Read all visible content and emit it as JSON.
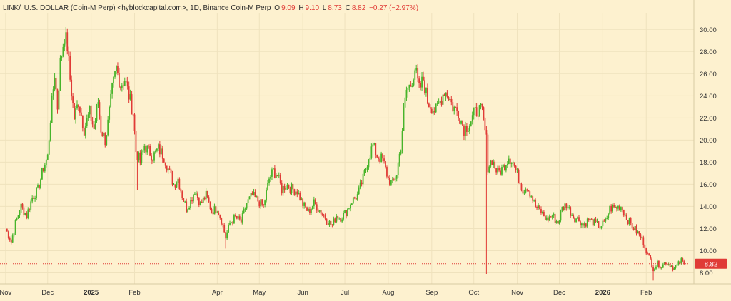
{
  "header": {
    "symbol": "LINK/",
    "name": "U.S. DOLLAR (Coin-M Perp) <hyblockcapital.com>, 1D, Binance Coin-M Perp",
    "o_label": "O",
    "o_value": "9.09",
    "h_label": "H",
    "h_value": "9.10",
    "l_label": "L",
    "l_value": "8.73",
    "c_label": "C",
    "c_value": "8.82",
    "change": "−0.27 (−2.97%)"
  },
  "colors": {
    "background": "#fdf1cf",
    "up": "#47b42a",
    "down": "#e03b36",
    "grid": "#efe2bd",
    "axis_text": "#333333",
    "last_price_badge": "#e03b36"
  },
  "chart_data": {
    "type": "candlestick",
    "title": "",
    "xlabel": "",
    "ylabel": "",
    "ylim": [
      7.0,
      31.5
    ],
    "grid": true,
    "y_ticks": [
      "8.00",
      "10.00",
      "12.00",
      "14.00",
      "16.00",
      "18.00",
      "20.00",
      "22.00",
      "24.00",
      "26.00",
      "28.00",
      "30.00"
    ],
    "x_ticks": [
      {
        "label": "Nov",
        "date": "2024-11-01"
      },
      {
        "label": "Dec",
        "date": "2024-12-01"
      },
      {
        "label": "2025",
        "date": "2025-01-01"
      },
      {
        "label": "Feb",
        "date": "2025-02-01"
      },
      {
        "label": "Apr",
        "date": "2025-04-01"
      },
      {
        "label": "May",
        "date": "2025-05-01"
      },
      {
        "label": "Jun",
        "date": "2025-06-01"
      },
      {
        "label": "Jul",
        "date": "2025-07-01"
      },
      {
        "label": "Aug",
        "date": "2025-08-01"
      },
      {
        "label": "Sep",
        "date": "2025-09-01"
      },
      {
        "label": "Oct",
        "date": "2025-10-01"
      },
      {
        "label": "Nov",
        "date": "2025-11-01"
      },
      {
        "label": "Dec",
        "date": "2025-12-01"
      },
      {
        "label": "2026",
        "date": "2026-01-01"
      },
      {
        "label": "Feb",
        "date": "2026-02-01"
      }
    ],
    "last_price": {
      "value": 8.82,
      "label": "8.82"
    },
    "close_path": [
      [
        "2024-11-01",
        12.0
      ],
      [
        "2024-11-05",
        10.8
      ],
      [
        "2024-11-08",
        12.5
      ],
      [
        "2024-11-12",
        14.0
      ],
      [
        "2024-11-16",
        13.2
      ],
      [
        "2024-11-20",
        14.8
      ],
      [
        "2024-11-24",
        15.5
      ],
      [
        "2024-11-28",
        17.5
      ],
      [
        "2024-12-01",
        18.5
      ],
      [
        "2024-12-03",
        22.0
      ],
      [
        "2024-12-06",
        26.0
      ],
      [
        "2024-12-08",
        23.0
      ],
      [
        "2024-12-10",
        27.0
      ],
      [
        "2024-12-13",
        29.5
      ],
      [
        "2024-12-15",
        28.5
      ],
      [
        "2024-12-17",
        25.5
      ],
      [
        "2024-12-20",
        22.0
      ],
      [
        "2024-12-23",
        23.5
      ],
      [
        "2024-12-27",
        21.0
      ],
      [
        "2024-12-31",
        22.5
      ],
      [
        "2025-01-03",
        21.0
      ],
      [
        "2025-01-06",
        23.5
      ],
      [
        "2025-01-08",
        21.0
      ],
      [
        "2025-01-11",
        20.0
      ],
      [
        "2025-01-13",
        21.5
      ],
      [
        "2025-01-16",
        24.5
      ],
      [
        "2025-01-19",
        26.5
      ],
      [
        "2025-01-22",
        25.0
      ],
      [
        "2025-01-25",
        25.5
      ],
      [
        "2025-01-28",
        24.0
      ],
      [
        "2025-01-31",
        22.5
      ],
      [
        "2025-02-02",
        19.0
      ],
      [
        "2025-02-05",
        18.0
      ],
      [
        "2025-02-08",
        19.5
      ],
      [
        "2025-02-11",
        19.0
      ],
      [
        "2025-02-14",
        18.5
      ],
      [
        "2025-02-18",
        19.2
      ],
      [
        "2025-02-22",
        18.5
      ],
      [
        "2025-02-26",
        17.0
      ],
      [
        "2025-03-01",
        16.0
      ],
      [
        "2025-03-04",
        16.5
      ],
      [
        "2025-03-07",
        15.0
      ],
      [
        "2025-03-10",
        13.8
      ],
      [
        "2025-03-13",
        14.5
      ],
      [
        "2025-03-16",
        15.5
      ],
      [
        "2025-03-20",
        14.2
      ],
      [
        "2025-03-24",
        15.0
      ],
      [
        "2025-03-28",
        13.6
      ],
      [
        "2025-04-01",
        13.8
      ],
      [
        "2025-04-04",
        12.8
      ],
      [
        "2025-04-07",
        11.2
      ],
      [
        "2025-04-10",
        12.5
      ],
      [
        "2025-04-14",
        13.0
      ],
      [
        "2025-04-18",
        12.6
      ],
      [
        "2025-04-22",
        14.3
      ],
      [
        "2025-04-26",
        15.0
      ],
      [
        "2025-04-30",
        14.5
      ],
      [
        "2025-05-04",
        14.0
      ],
      [
        "2025-05-08",
        16.5
      ],
      [
        "2025-05-11",
        17.2
      ],
      [
        "2025-05-14",
        16.8
      ],
      [
        "2025-05-17",
        15.5
      ],
      [
        "2025-05-20",
        16.0
      ],
      [
        "2025-05-24",
        15.6
      ],
      [
        "2025-05-28",
        15.4
      ],
      [
        "2025-06-01",
        14.2
      ],
      [
        "2025-06-05",
        13.5
      ],
      [
        "2025-06-09",
        14.3
      ],
      [
        "2025-06-12",
        13.8
      ],
      [
        "2025-06-16",
        13.2
      ],
      [
        "2025-06-20",
        12.5
      ],
      [
        "2025-06-22",
        12.3
      ],
      [
        "2025-06-25",
        13.2
      ],
      [
        "2025-06-28",
        13.0
      ],
      [
        "2025-07-02",
        13.5
      ],
      [
        "2025-07-06",
        14.5
      ],
      [
        "2025-07-10",
        15.0
      ],
      [
        "2025-07-14",
        16.5
      ],
      [
        "2025-07-18",
        18.5
      ],
      [
        "2025-07-21",
        19.5
      ],
      [
        "2025-07-24",
        18.6
      ],
      [
        "2025-07-28",
        18.2
      ],
      [
        "2025-08-01",
        16.5
      ],
      [
        "2025-08-04",
        16.0
      ],
      [
        "2025-08-07",
        17.0
      ],
      [
        "2025-08-10",
        19.5
      ],
      [
        "2025-08-12",
        22.5
      ],
      [
        "2025-08-14",
        24.5
      ],
      [
        "2025-08-17",
        25.0
      ],
      [
        "2025-08-20",
        26.5
      ],
      [
        "2025-08-23",
        24.5
      ],
      [
        "2025-08-26",
        25.5
      ],
      [
        "2025-08-29",
        23.5
      ],
      [
        "2025-09-01",
        23.0
      ],
      [
        "2025-09-04",
        22.6
      ],
      [
        "2025-09-07",
        23.5
      ],
      [
        "2025-09-10",
        24.5
      ],
      [
        "2025-09-13",
        24.0
      ],
      [
        "2025-09-16",
        23.0
      ],
      [
        "2025-09-20",
        22.5
      ],
      [
        "2025-09-24",
        21.0
      ],
      [
        "2025-09-28",
        21.5
      ],
      [
        "2025-10-01",
        22.3
      ],
      [
        "2025-10-04",
        22.8
      ],
      [
        "2025-10-07",
        22.5
      ],
      [
        "2025-10-10",
        20.0
      ],
      [
        "2025-10-11",
        17.6
      ],
      [
        "2025-10-14",
        18.2
      ],
      [
        "2025-10-18",
        17.0
      ],
      [
        "2025-10-22",
        17.5
      ],
      [
        "2025-10-26",
        18.5
      ],
      [
        "2025-10-29",
        18.0
      ],
      [
        "2025-11-02",
        16.5
      ],
      [
        "2025-11-05",
        15.5
      ],
      [
        "2025-11-08",
        15.8
      ],
      [
        "2025-11-11",
        15.0
      ],
      [
        "2025-11-14",
        14.0
      ],
      [
        "2025-11-18",
        13.5
      ],
      [
        "2025-11-22",
        12.8
      ],
      [
        "2025-11-26",
        13.2
      ],
      [
        "2025-11-30",
        12.5
      ],
      [
        "2025-12-03",
        13.8
      ],
      [
        "2025-12-06",
        14.2
      ],
      [
        "2025-12-09",
        13.5
      ],
      [
        "2025-12-12",
        13.0
      ],
      [
        "2025-12-15",
        12.8
      ],
      [
        "2025-12-18",
        12.3
      ],
      [
        "2025-12-22",
        12.8
      ],
      [
        "2025-12-26",
        12.5
      ],
      [
        "2025-12-30",
        12.2
      ],
      [
        "2026-01-03",
        12.6
      ],
      [
        "2026-01-06",
        13.8
      ],
      [
        "2026-01-10",
        13.9
      ],
      [
        "2026-01-14",
        14.0
      ],
      [
        "2026-01-18",
        13.0
      ],
      [
        "2026-01-22",
        12.2
      ],
      [
        "2026-01-26",
        11.6
      ],
      [
        "2026-01-29",
        11.0
      ],
      [
        "2026-01-31",
        10.5
      ],
      [
        "2026-02-02",
        9.6
      ],
      [
        "2026-02-04",
        9.2
      ],
      [
        "2026-02-06",
        8.4
      ],
      [
        "2026-02-09",
        8.8
      ],
      [
        "2026-02-12",
        8.6
      ],
      [
        "2026-02-15",
        9.0
      ],
      [
        "2026-02-18",
        8.7
      ],
      [
        "2026-02-21",
        8.4
      ],
      [
        "2026-02-24",
        8.8
      ],
      [
        "2026-02-26",
        9.1
      ],
      [
        "2026-02-28",
        8.82
      ]
    ],
    "wick_events": [
      {
        "date": "2025-02-03",
        "low": 15.5
      },
      {
        "date": "2025-04-07",
        "low": 10.2
      },
      {
        "date": "2025-10-10",
        "low": 7.9
      },
      {
        "date": "2026-02-06",
        "low": 7.3
      }
    ]
  }
}
